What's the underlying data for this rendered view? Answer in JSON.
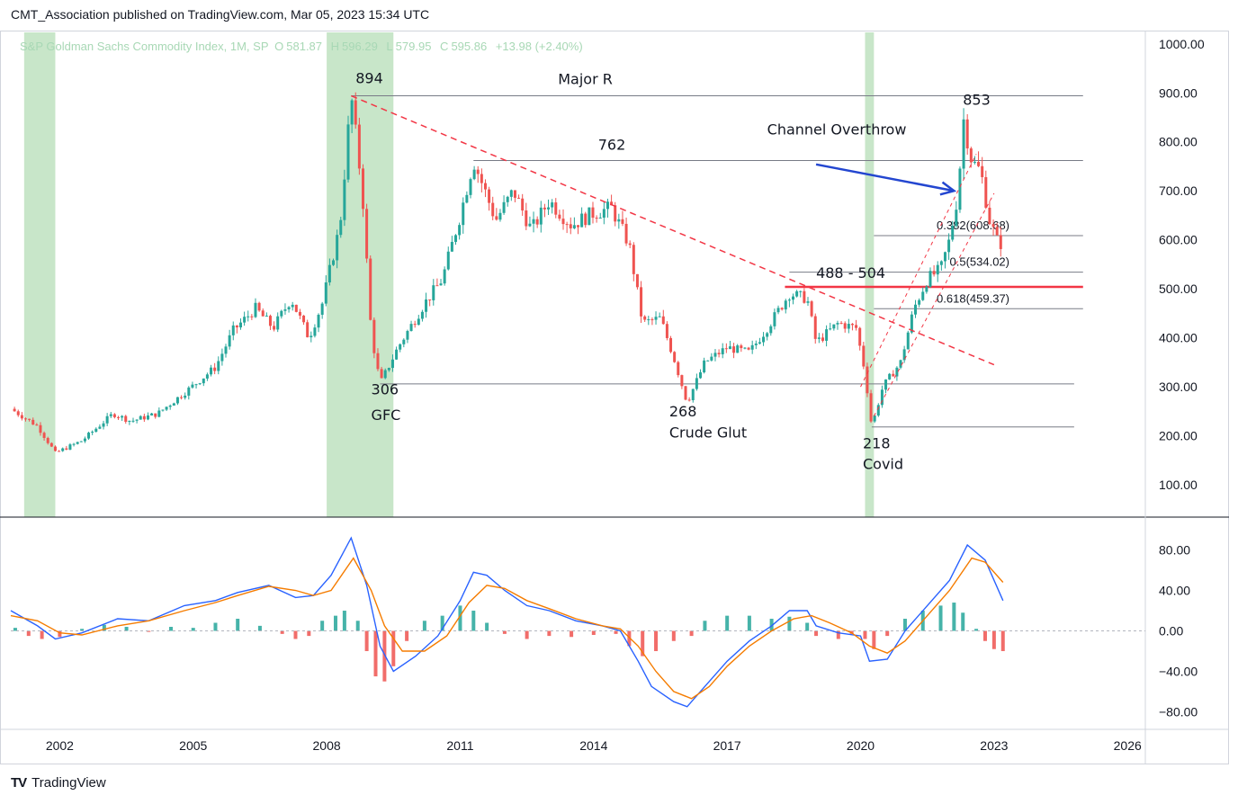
{
  "header": {
    "publisher_line": "CMT_Association published on TradingView.com, Mar 05, 2023 15:34 UTC"
  },
  "legend": {
    "symbol": "S&P Goldman Sachs Commodity Index, 1M, SP",
    "open_label": "O",
    "open": "581.87",
    "high_label": "H",
    "high": "596.29",
    "low_label": "L",
    "low": "579.95",
    "close_label": "C",
    "close": "595.86",
    "change": "+13.98 (+2.40%)"
  },
  "footer": {
    "logo": "TV",
    "brand": "TradingView"
  },
  "colors": {
    "up": "#26a69a",
    "down": "#ef5350",
    "recession": "#c8e6c9",
    "trend": "#f23645",
    "arrow": "#2346d0",
    "macd": "#2962ff",
    "signal": "#f57c00"
  },
  "chart_data": [
    {
      "type": "candlestick",
      "title": "",
      "y_axis": {
        "range": [
          0,
          1050
        ],
        "ticks": [
          "100.00",
          "200.00",
          "300.00",
          "400.00",
          "500.00",
          "600.00",
          "700.00",
          "800.00",
          "900.00",
          "1000.00"
        ],
        "position": "right"
      },
      "x_axis": {
        "range": [
          2000.9,
          2026.4
        ],
        "ticks": [
          "2002",
          "2005",
          "2008",
          "2011",
          "2014",
          "2017",
          "2020",
          "2023",
          "2026"
        ]
      },
      "price_path": [
        [
          2000.9,
          255
        ],
        [
          2001.5,
          220
        ],
        [
          2001.9,
          165
        ],
        [
          2002.5,
          190
        ],
        [
          2003.2,
          245
        ],
        [
          2003.6,
          230
        ],
        [
          2004.2,
          245
        ],
        [
          2004.9,
          295
        ],
        [
          2005.5,
          340
        ],
        [
          2005.9,
          415
        ],
        [
          2006.4,
          460
        ],
        [
          2006.8,
          420
        ],
        [
          2007.2,
          480
        ],
        [
          2007.6,
          400
        ],
        [
          2007.9,
          470
        ],
        [
          2008.3,
          630
        ],
        [
          2008.55,
          894
        ],
        [
          2008.8,
          700
        ],
        [
          2009.0,
          410
        ],
        [
          2009.2,
          306
        ],
        [
          2009.6,
          380
        ],
        [
          2010.2,
          470
        ],
        [
          2010.6,
          520
        ],
        [
          2011.0,
          650
        ],
        [
          2011.3,
          762
        ],
        [
          2011.8,
          640
        ],
        [
          2012.2,
          700
        ],
        [
          2012.6,
          620
        ],
        [
          2013.0,
          680
        ],
        [
          2013.5,
          630
        ],
        [
          2014.0,
          655
        ],
        [
          2014.4,
          665
        ],
        [
          2014.8,
          590
        ],
        [
          2015.1,
          430
        ],
        [
          2015.5,
          440
        ],
        [
          2015.8,
          360
        ],
        [
          2016.1,
          268
        ],
        [
          2016.5,
          350
        ],
        [
          2017.0,
          380
        ],
        [
          2017.5,
          370
        ],
        [
          2017.9,
          420
        ],
        [
          2018.4,
          490
        ],
        [
          2018.8,
          480
        ],
        [
          2019.0,
          390
        ],
        [
          2019.5,
          430
        ],
        [
          2019.9,
          420
        ],
        [
          2020.1,
          330
        ],
        [
          2020.25,
          218
        ],
        [
          2020.5,
          300
        ],
        [
          2020.9,
          350
        ],
        [
          2021.2,
          460
        ],
        [
          2021.5,
          520
        ],
        [
          2021.8,
          540
        ],
        [
          2022.0,
          600
        ],
        [
          2022.2,
          700
        ],
        [
          2022.3,
          853
        ],
        [
          2022.5,
          760
        ],
        [
          2022.7,
          740
        ],
        [
          2022.9,
          640
        ],
        [
          2023.1,
          590
        ],
        [
          2023.2,
          595.86
        ]
      ],
      "recession_bands": [
        [
          2001.2,
          2001.9
        ],
        [
          2008.0,
          2009.5
        ],
        [
          2020.1,
          2020.3
        ]
      ],
      "levels": [
        {
          "label": "Major R",
          "value": 894,
          "x_from": 2008.55,
          "x_to": 2025.0
        },
        {
          "label": "762",
          "value": 762,
          "x_from": 2011.3,
          "x_to": 2025.0
        },
        {
          "label": "0.382(608.68)",
          "value": 608.68,
          "x_from": 2020.3,
          "x_to": 2025.0
        },
        {
          "label": "0.5(534.02)",
          "value": 534.02,
          "x_from": 2018.4,
          "x_to": 2025.0
        },
        {
          "label": "488 - 504",
          "value": 504,
          "x_from": 2018.3,
          "x_to": 2025.0
        },
        {
          "label": "0.618(459.37)",
          "value": 459.37,
          "x_from": 2020.3,
          "x_to": 2025.0
        },
        {
          "label": "",
          "value": 306,
          "x_from": 2009.2,
          "x_to": 2024.8
        },
        {
          "label": "",
          "value": 218,
          "x_from": 2020.25,
          "x_to": 2024.8
        }
      ],
      "trendline": {
        "from": [
          2008.55,
          894
        ],
        "to": [
          2023.0,
          345
        ]
      },
      "channel_lines": [
        {
          "from": [
            2020.0,
            300
          ],
          "to": [
            2022.6,
            775
          ]
        },
        {
          "from": [
            2020.3,
            240
          ],
          "to": [
            2023.0,
            695
          ]
        }
      ],
      "annotations": [
        {
          "text": "894",
          "x": 2008.65,
          "y": 920
        },
        {
          "text": "Major R",
          "x": 2013.2,
          "y": 918
        },
        {
          "text": "762",
          "x": 2014.1,
          "y": 784
        },
        {
          "text": "853",
          "x": 2022.3,
          "y": 876
        },
        {
          "text": "Channel Overthrow",
          "x": 2017.9,
          "y": 815
        },
        {
          "text": "488 - 504",
          "x": 2019.0,
          "y": 522
        },
        {
          "text": "306",
          "x": 2009.0,
          "y": 285
        },
        {
          "text": "GFC",
          "x": 2009.0,
          "y": 232
        },
        {
          "text": "268",
          "x": 2015.7,
          "y": 240
        },
        {
          "text": "Crude Glut",
          "x": 2015.7,
          "y": 196
        },
        {
          "text": "218",
          "x": 2020.05,
          "y": 174
        },
        {
          "text": "Covid",
          "x": 2020.05,
          "y": 132
        }
      ],
      "arrow": {
        "from": [
          2019.0,
          754
        ],
        "to": [
          2022.1,
          700
        ]
      }
    },
    {
      "type": "line",
      "title": "",
      "y_axis": {
        "range": [
          -100,
          100
        ],
        "ticks": [
          "80.00",
          "40.00",
          "0.00",
          "−40.00",
          "−80.00"
        ],
        "position": "right"
      },
      "series": [
        {
          "name": "",
          "color": "macd",
          "values": [
            [
              2000.9,
              20
            ],
            [
              2001.5,
              5
            ],
            [
              2001.9,
              -8
            ],
            [
              2002.5,
              -2
            ],
            [
              2003.3,
              12
            ],
            [
              2004.0,
              10
            ],
            [
              2004.8,
              25
            ],
            [
              2005.5,
              30
            ],
            [
              2006.0,
              38
            ],
            [
              2006.7,
              45
            ],
            [
              2007.3,
              33
            ],
            [
              2007.7,
              35
            ],
            [
              2008.1,
              55
            ],
            [
              2008.55,
              92
            ],
            [
              2008.9,
              45
            ],
            [
              2009.2,
              -15
            ],
            [
              2009.5,
              -40
            ],
            [
              2010.0,
              -25
            ],
            [
              2010.5,
              -5
            ],
            [
              2011.0,
              30
            ],
            [
              2011.3,
              58
            ],
            [
              2011.6,
              55
            ],
            [
              2012.0,
              40
            ],
            [
              2012.5,
              25
            ],
            [
              2013.0,
              20
            ],
            [
              2013.6,
              10
            ],
            [
              2014.2,
              5
            ],
            [
              2014.6,
              0
            ],
            [
              2015.0,
              -30
            ],
            [
              2015.3,
              -55
            ],
            [
              2015.8,
              -70
            ],
            [
              2016.1,
              -75
            ],
            [
              2016.5,
              -55
            ],
            [
              2017.0,
              -30
            ],
            [
              2017.5,
              -10
            ],
            [
              2018.0,
              5
            ],
            [
              2018.4,
              20
            ],
            [
              2018.8,
              20
            ],
            [
              2019.0,
              5
            ],
            [
              2019.5,
              -2
            ],
            [
              2020.0,
              -5
            ],
            [
              2020.2,
              -30
            ],
            [
              2020.6,
              -28
            ],
            [
              2021.0,
              0
            ],
            [
              2021.5,
              25
            ],
            [
              2022.0,
              50
            ],
            [
              2022.4,
              85
            ],
            [
              2022.8,
              70
            ],
            [
              2023.2,
              30
            ]
          ]
        },
        {
          "name": "",
          "color": "signal",
          "values": [
            [
              2000.9,
              15
            ],
            [
              2001.5,
              10
            ],
            [
              2002.0,
              -2
            ],
            [
              2002.5,
              -4
            ],
            [
              2003.3,
              5
            ],
            [
              2004.0,
              10
            ],
            [
              2004.8,
              20
            ],
            [
              2005.5,
              28
            ],
            [
              2006.0,
              35
            ],
            [
              2006.7,
              44
            ],
            [
              2007.3,
              40
            ],
            [
              2007.7,
              35
            ],
            [
              2008.1,
              40
            ],
            [
              2008.6,
              72
            ],
            [
              2009.0,
              40
            ],
            [
              2009.3,
              5
            ],
            [
              2009.7,
              -20
            ],
            [
              2010.2,
              -20
            ],
            [
              2010.7,
              -5
            ],
            [
              2011.2,
              28
            ],
            [
              2011.6,
              45
            ],
            [
              2012.0,
              42
            ],
            [
              2012.5,
              30
            ],
            [
              2013.0,
              22
            ],
            [
              2013.6,
              12
            ],
            [
              2014.2,
              5
            ],
            [
              2014.6,
              2
            ],
            [
              2015.0,
              -15
            ],
            [
              2015.4,
              -40
            ],
            [
              2015.8,
              -60
            ],
            [
              2016.2,
              -67
            ],
            [
              2016.6,
              -55
            ],
            [
              2017.0,
              -35
            ],
            [
              2017.5,
              -15
            ],
            [
              2018.0,
              0
            ],
            [
              2018.5,
              12
            ],
            [
              2018.9,
              15
            ],
            [
              2019.3,
              8
            ],
            [
              2019.8,
              -2
            ],
            [
              2020.2,
              -15
            ],
            [
              2020.6,
              -22
            ],
            [
              2021.0,
              -10
            ],
            [
              2021.5,
              15
            ],
            [
              2022.0,
              40
            ],
            [
              2022.5,
              72
            ],
            [
              2022.8,
              68
            ],
            [
              2023.2,
              48
            ]
          ]
        }
      ],
      "histogram": [
        [
          2001.0,
          3
        ],
        [
          2001.3,
          -5
        ],
        [
          2001.6,
          -8
        ],
        [
          2002.0,
          -6
        ],
        [
          2002.5,
          2
        ],
        [
          2003.0,
          6
        ],
        [
          2003.5,
          4
        ],
        [
          2004.0,
          -1
        ],
        [
          2004.5,
          4
        ],
        [
          2005.0,
          3
        ],
        [
          2005.5,
          8
        ],
        [
          2006.0,
          12
        ],
        [
          2006.5,
          5
        ],
        [
          2007.0,
          -3
        ],
        [
          2007.3,
          -8
        ],
        [
          2007.6,
          -5
        ],
        [
          2007.9,
          10
        ],
        [
          2008.2,
          15
        ],
        [
          2008.4,
          20
        ],
        [
          2008.7,
          10
        ],
        [
          2008.9,
          -20
        ],
        [
          2009.1,
          -45
        ],
        [
          2009.3,
          -50
        ],
        [
          2009.5,
          -35
        ],
        [
          2009.8,
          -10
        ],
        [
          2010.2,
          10
        ],
        [
          2010.6,
          15
        ],
        [
          2011.0,
          25
        ],
        [
          2011.3,
          20
        ],
        [
          2011.6,
          8
        ],
        [
          2012.0,
          -3
        ],
        [
          2012.5,
          -8
        ],
        [
          2013.0,
          -5
        ],
        [
          2013.5,
          -6
        ],
        [
          2014.0,
          -4
        ],
        [
          2014.5,
          -3
        ],
        [
          2014.8,
          -15
        ],
        [
          2015.1,
          -25
        ],
        [
          2015.4,
          -20
        ],
        [
          2015.8,
          -10
        ],
        [
          2016.2,
          -5
        ],
        [
          2016.5,
          10
        ],
        [
          2017.0,
          15
        ],
        [
          2017.5,
          15
        ],
        [
          2018.0,
          12
        ],
        [
          2018.4,
          14
        ],
        [
          2018.8,
          8
        ],
        [
          2019.0,
          -5
        ],
        [
          2019.5,
          -8
        ],
        [
          2019.8,
          -3
        ],
        [
          2020.1,
          -8
        ],
        [
          2020.3,
          -18
        ],
        [
          2020.6,
          -5
        ],
        [
          2021.0,
          12
        ],
        [
          2021.4,
          20
        ],
        [
          2021.8,
          25
        ],
        [
          2022.1,
          28
        ],
        [
          2022.3,
          18
        ],
        [
          2022.6,
          2
        ],
        [
          2022.8,
          -10
        ],
        [
          2023.0,
          -18
        ],
        [
          2023.2,
          -20
        ]
      ]
    }
  ]
}
